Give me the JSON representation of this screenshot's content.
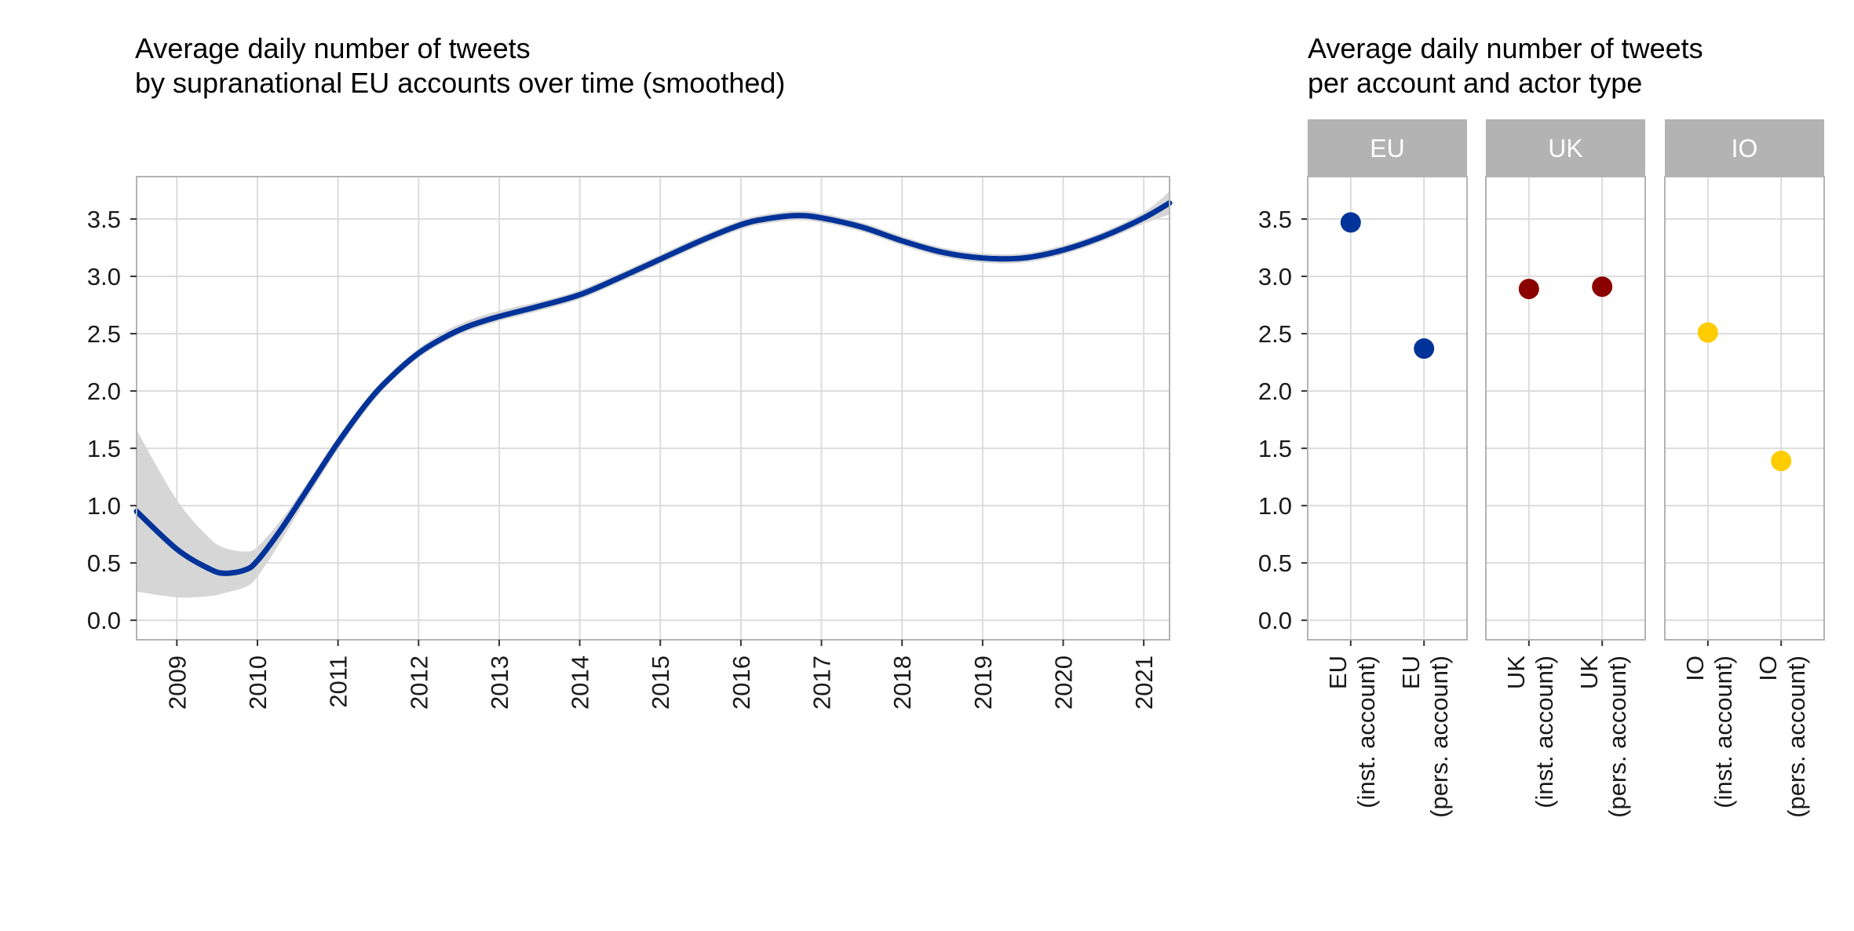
{
  "chart_data": [
    {
      "type": "line",
      "title_lines": [
        "Average daily number of tweets",
        "by supranational EU accounts over time (smoothed)"
      ],
      "xlabel": "",
      "ylabel": "",
      "x_ticks": [
        "2009",
        "2010",
        "2011",
        "2012",
        "2013",
        "2014",
        "2015",
        "2016",
        "2017",
        "2018",
        "2019",
        "2020",
        "2021"
      ],
      "y_ticks": [
        "0.0",
        "0.5",
        "1.0",
        "1.5",
        "2.0",
        "2.5",
        "3.0",
        "3.5"
      ],
      "xlim": [
        2008.5,
        2021.32
      ],
      "ylim": [
        -0.17,
        3.87
      ],
      "grid": true,
      "series": [
        {
          "color": "#003399",
          "ci_color": "#d6d6d6",
          "x": [
            2008.5,
            2009.0,
            2009.4,
            2009.6,
            2009.85,
            2010.0,
            2010.3,
            2010.6,
            2011.0,
            2011.4,
            2011.7,
            2012.0,
            2012.3,
            2012.6,
            2013.0,
            2013.5,
            2014.0,
            2014.5,
            2015.0,
            2015.5,
            2016.0,
            2016.3,
            2016.7,
            2017.0,
            2017.5,
            2018.0,
            2018.5,
            2019.0,
            2019.5,
            2020.0,
            2020.5,
            2021.0,
            2021.32
          ],
          "y": [
            0.95,
            0.62,
            0.45,
            0.41,
            0.44,
            0.52,
            0.8,
            1.12,
            1.55,
            1.93,
            2.15,
            2.33,
            2.46,
            2.56,
            2.65,
            2.74,
            2.84,
            2.99,
            3.15,
            3.31,
            3.45,
            3.5,
            3.53,
            3.51,
            3.43,
            3.31,
            3.21,
            3.16,
            3.16,
            3.23,
            3.35,
            3.51,
            3.64
          ],
          "ci_upper": [
            1.66,
            1.05,
            0.72,
            0.63,
            0.6,
            0.64,
            0.88,
            1.18,
            1.6,
            1.97,
            2.19,
            2.37,
            2.51,
            2.61,
            2.7,
            2.78,
            2.88,
            3.03,
            3.19,
            3.35,
            3.49,
            3.54,
            3.57,
            3.55,
            3.47,
            3.35,
            3.25,
            3.2,
            3.2,
            3.27,
            3.39,
            3.56,
            3.74
          ],
          "ci_lower": [
            0.25,
            0.2,
            0.21,
            0.24,
            0.29,
            0.38,
            0.7,
            1.05,
            1.49,
            1.88,
            2.11,
            2.29,
            2.42,
            2.52,
            2.61,
            2.7,
            2.8,
            2.95,
            3.11,
            3.27,
            3.41,
            3.46,
            3.49,
            3.47,
            3.39,
            3.27,
            3.17,
            3.12,
            3.12,
            3.19,
            3.31,
            3.46,
            3.54
          ]
        }
      ]
    },
    {
      "type": "scatter",
      "title_lines": [
        "Average daily number of tweets",
        "per account and actor type"
      ],
      "y_ticks": [
        "0.0",
        "0.5",
        "1.0",
        "1.5",
        "2.0",
        "2.5",
        "3.0",
        "3.5"
      ],
      "ylim": [
        -0.17,
        3.87
      ],
      "grid": true,
      "facets": [
        {
          "strip": "EU",
          "color": "#003399",
          "categories": [
            {
              "line1": "EU",
              "line2": "(inst. account)",
              "value": 3.47
            },
            {
              "line1": "EU",
              "line2": "(pers. account)",
              "value": 2.37
            }
          ]
        },
        {
          "strip": "UK",
          "color": "#8b0000",
          "categories": [
            {
              "line1": "UK",
              "line2": "(inst. account)",
              "value": 2.89
            },
            {
              "line1": "UK",
              "line2": "(pers. account)",
              "value": 2.91
            }
          ]
        },
        {
          "strip": "IO",
          "color": "#ffcc00",
          "categories": [
            {
              "line1": "IO",
              "line2": "(inst. account)",
              "value": 2.51
            },
            {
              "line1": "IO",
              "line2": "(pers. account)",
              "value": 1.39
            }
          ]
        }
      ],
      "strip_color": "#b3b3b3"
    }
  ]
}
